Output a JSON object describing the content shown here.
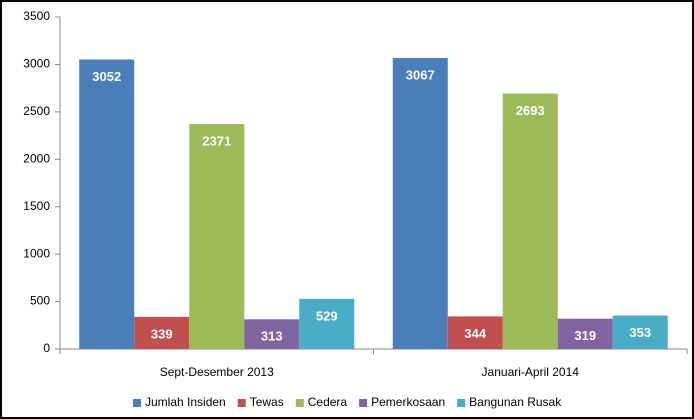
{
  "chart_data": {
    "type": "bar",
    "categories": [
      "Sept-Desember 2013",
      "Januari-April 2014"
    ],
    "series": [
      {
        "name": "Jumlah Insiden",
        "color": "#4a7ebb",
        "values": [
          3052,
          3067
        ]
      },
      {
        "name": "Tewas",
        "color": "#c0504d",
        "values": [
          339,
          344
        ]
      },
      {
        "name": "Cedera",
        "color": "#9bbb59",
        "values": [
          2371,
          2693
        ]
      },
      {
        "name": "Pemerkosaan",
        "color": "#8064a2",
        "values": [
          313,
          319
        ]
      },
      {
        "name": "Bangunan Rusak",
        "color": "#4bacc6",
        "values": [
          529,
          353
        ]
      }
    ],
    "ylim": [
      0,
      3500
    ],
    "yticks": [
      0,
      500,
      1000,
      1500,
      2000,
      2500,
      3000,
      3500
    ],
    "grid": false,
    "legend": "bottom"
  }
}
